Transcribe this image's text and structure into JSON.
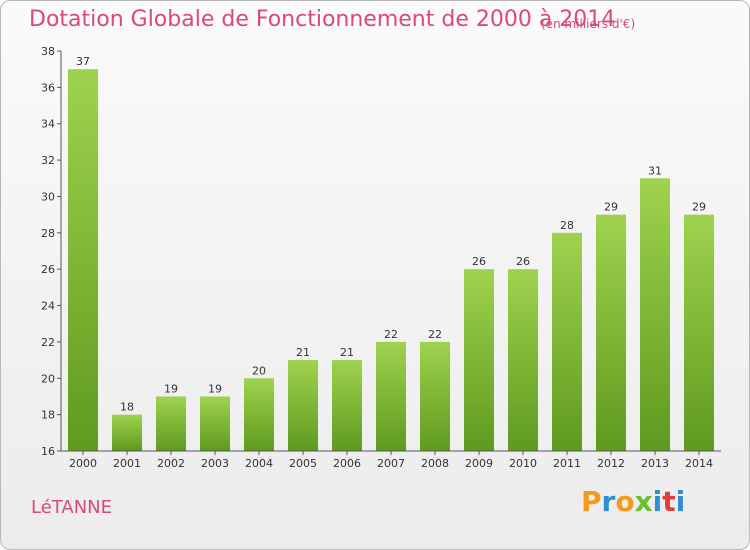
{
  "title": "Dotation Globale de Fonctionnement de 2000 à 2014",
  "subtitle": "(en milliers d'€)",
  "commune": "LéTANNE",
  "logo": {
    "letters": [
      "P",
      "r",
      "o",
      "x",
      "i",
      "t",
      "i"
    ],
    "colors": [
      "#f39a1d",
      "#2f8fd6",
      "#f39a1d",
      "#6bbf2f",
      "#2f8fd6",
      "#e23b3b",
      "#2f8fd6"
    ]
  },
  "colors": {
    "bar_top": "#9fd24f",
    "bar_bottom": "#5f9a1e",
    "axis": "#555555",
    "grid": "#cccccc"
  },
  "chart_data": {
    "type": "bar",
    "categories": [
      "2000",
      "2001",
      "2002",
      "2003",
      "2004",
      "2005",
      "2006",
      "2007",
      "2008",
      "2009",
      "2010",
      "2011",
      "2012",
      "2013",
      "2014"
    ],
    "values": [
      37,
      18,
      19,
      19,
      20,
      21,
      21,
      22,
      22,
      26,
      26,
      28,
      29,
      31,
      29
    ],
    "data_labels": [
      "37",
      "18",
      "19",
      "19",
      "20",
      "21",
      "21",
      "22",
      "22",
      "26",
      "26",
      "28",
      "29",
      "31",
      "29"
    ],
    "ylim": [
      16,
      38
    ],
    "yticks": [
      16,
      18,
      20,
      22,
      24,
      26,
      28,
      30,
      32,
      34,
      36,
      38
    ],
    "grid": false,
    "legend": "none"
  }
}
